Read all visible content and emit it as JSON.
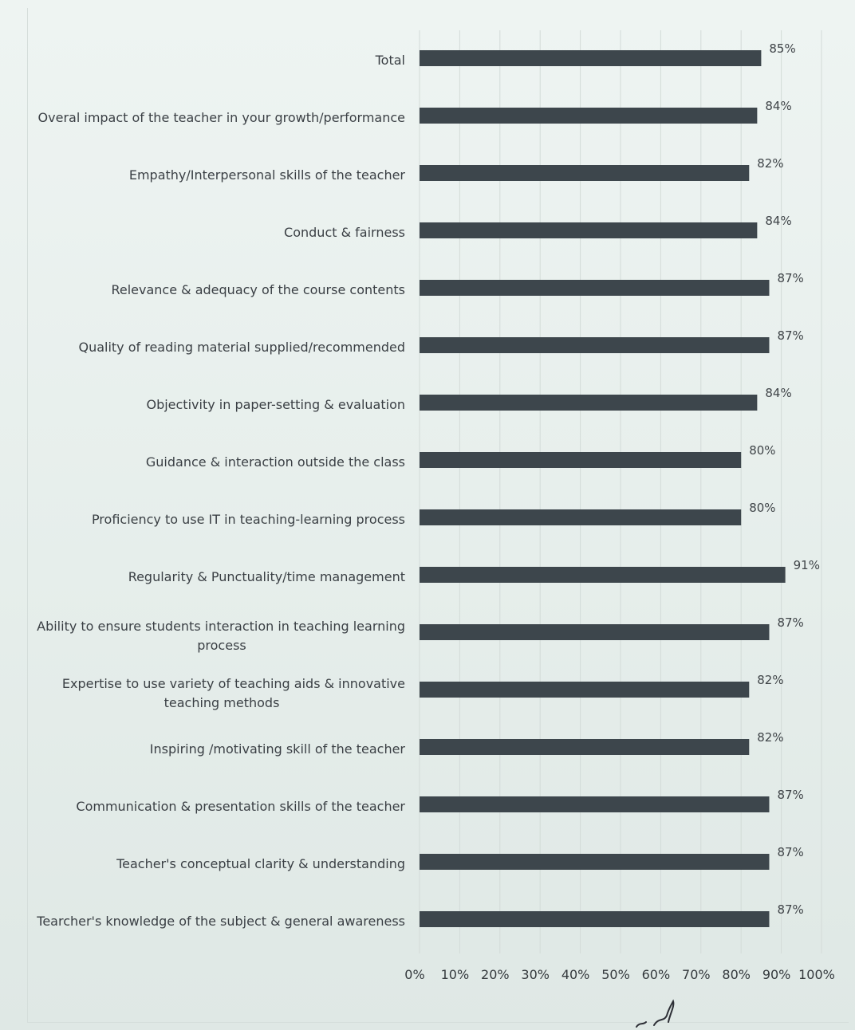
{
  "chart_data": {
    "type": "bar",
    "orientation": "horizontal",
    "categories": [
      "Total",
      "Overal impact of the teacher in your growth/performance",
      "Empathy/Interpersonal skills of the teacher",
      "Conduct & fairness",
      "Relevance & adequacy of the course contents",
      "Quality of reading material supplied/recommended",
      "Objectivity in paper-setting & evaluation",
      "Guidance & interaction outside the class",
      "Proficiency to use IT in teaching-learning process",
      "Regularity & Punctuality/time management",
      "Ability to ensure students interaction in teaching learning process",
      "Expertise to use variety of teaching aids & innovative teaching methods",
      "Inspiring /motivating skill of the teacher",
      "Communication & presentation skills of the teacher",
      "Teacher's conceptual clarity & understanding",
      "Tearcher's knowledge of the subject & general awareness"
    ],
    "category_lines": [
      [
        "Total"
      ],
      [
        "Overal impact of the teacher in your growth/performance"
      ],
      [
        "Empathy/Interpersonal skills of the teacher"
      ],
      [
        "Conduct & fairness"
      ],
      [
        "Relevance & adequacy of the course contents"
      ],
      [
        "Quality of reading material supplied/recommended"
      ],
      [
        "Objectivity in paper-setting & evaluation"
      ],
      [
        "Guidance & interaction outside the class"
      ],
      [
        "Proficiency to use IT in teaching-learning process"
      ],
      [
        "Regularity & Punctuality/time management"
      ],
      [
        "Ability to ensure students interaction in teaching learning",
        "process"
      ],
      [
        "Expertise to use variety of teaching aids & innovative",
        "teaching methods"
      ],
      [
        "Inspiring /motivating skill of the teacher"
      ],
      [
        "Communication & presentation skills of the teacher"
      ],
      [
        "Teacher's conceptual clarity & understanding"
      ],
      [
        "Tearcher's knowledge of the subject & general awareness"
      ]
    ],
    "values": [
      85,
      84,
      82,
      84,
      87,
      87,
      84,
      80,
      80,
      91,
      87,
      82,
      82,
      87,
      87,
      87
    ],
    "value_labels": [
      "85%",
      "84%",
      "82%",
      "84%",
      "87%",
      "87%",
      "84%",
      "80%",
      "80%",
      "91%",
      "87%",
      "82%",
      "82%",
      "87%",
      "87%",
      "87%"
    ],
    "xlim": [
      0,
      100
    ],
    "x_ticks": [
      "0%",
      "10%",
      "20%",
      "30%",
      "40%",
      "50%",
      "60%",
      "70%",
      "80%",
      "90%",
      "100%"
    ],
    "grid": "vertical",
    "title": "",
    "xlabel": "",
    "ylabel": "",
    "bar_color": "#3d464c",
    "grid_color": "#d3dbd8"
  }
}
